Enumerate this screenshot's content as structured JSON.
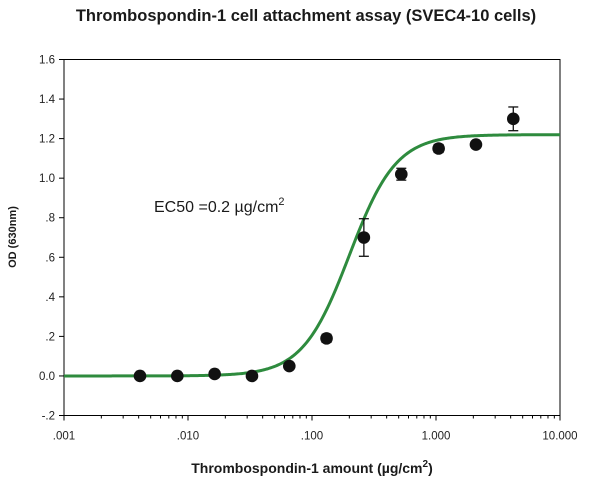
{
  "chart_data": {
    "type": "scatter",
    "title": "Thrombospondin-1 cell attachment assay (SVEC4-10 cells)",
    "xlabel": "Thrombospondin-1 amount (µg/cm",
    "xlabel_sup": "2",
    "xlabel_close": ")",
    "ylabel": "OD (630nm)",
    "x_scale": "log",
    "xlim": [
      0.001,
      10
    ],
    "ylim": [
      -0.2,
      1.6
    ],
    "grid": false,
    "x_ticks": [
      {
        "value": 0.001,
        "label": ".001"
      },
      {
        "value": 0.01,
        "label": ".010"
      },
      {
        "value": 0.1,
        "label": ".100"
      },
      {
        "value": 1,
        "label": "1.000"
      },
      {
        "value": 10,
        "label": "10.000"
      }
    ],
    "y_ticks": [
      {
        "value": -0.2,
        "label": "-.2"
      },
      {
        "value": 0.0,
        "label": "0.0"
      },
      {
        "value": 0.2,
        "label": ".2"
      },
      {
        "value": 0.4,
        "label": ".4"
      },
      {
        "value": 0.6,
        "label": ".6"
      },
      {
        "value": 0.8,
        "label": ".8"
      },
      {
        "value": 1.0,
        "label": "1.0"
      },
      {
        "value": 1.2,
        "label": "1.2"
      },
      {
        "value": 1.4,
        "label": "1.4"
      },
      {
        "value": 1.6,
        "label": "1.6"
      }
    ],
    "series": [
      {
        "points": [
          {
            "x": 0.0041,
            "y": 0.0,
            "err": 0
          },
          {
            "x": 0.0082,
            "y": 0.0,
            "err": 0
          },
          {
            "x": 0.0164,
            "y": 0.01,
            "err": 0
          },
          {
            "x": 0.0328,
            "y": 0.0,
            "err": 0
          },
          {
            "x": 0.0656,
            "y": 0.05,
            "err": 0
          },
          {
            "x": 0.131,
            "y": 0.19,
            "err": 0.02
          },
          {
            "x": 0.262,
            "y": 0.7,
            "err": 0.095
          },
          {
            "x": 0.525,
            "y": 1.02,
            "err": 0.03
          },
          {
            "x": 1.05,
            "y": 1.15,
            "err": 0.02
          },
          {
            "x": 2.1,
            "y": 1.17,
            "err": 0
          },
          {
            "x": 4.2,
            "y": 1.3,
            "err": 0.06
          }
        ]
      }
    ],
    "fit_curve": {
      "model": "4PL",
      "bottom": 0.0,
      "top": 1.22,
      "ec50": 0.2,
      "hill": 2.3,
      "color": "#2e8b3e"
    },
    "annotations": [
      {
        "text": "EC50 =0.2 µg/cm",
        "sup": "2"
      }
    ],
    "colors": {
      "marker": "#111111",
      "axis": "#000000"
    }
  }
}
